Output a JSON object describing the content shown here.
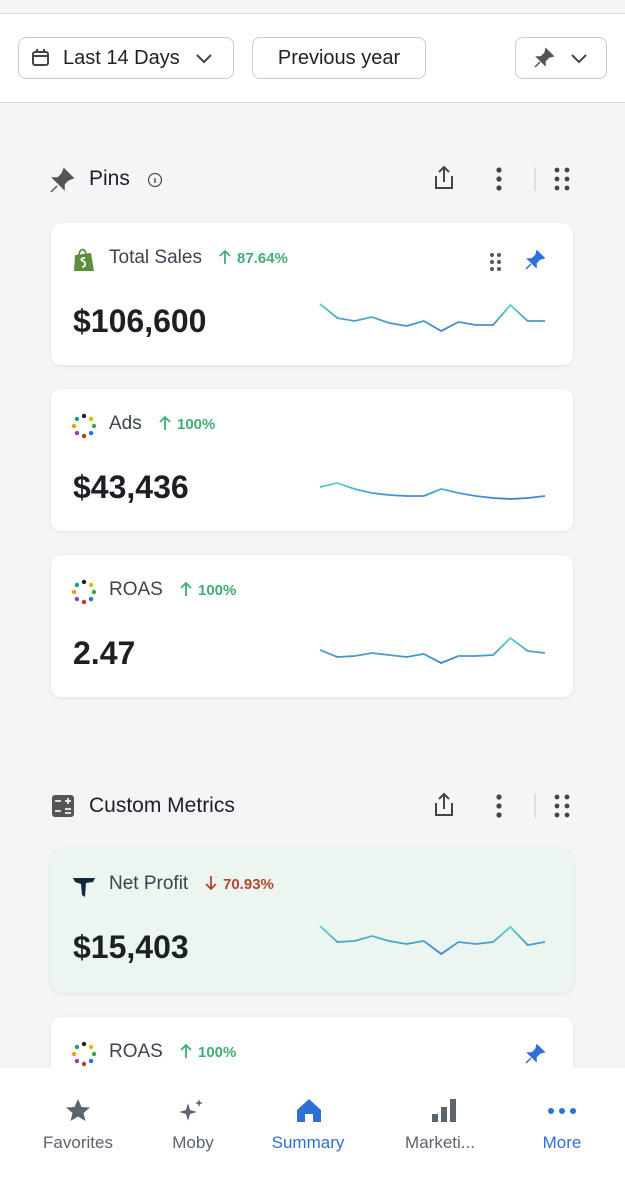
{
  "toolbar": {
    "date_range": "Last 14 Days",
    "compare": "Previous year"
  },
  "sections": [
    {
      "title": "Pins",
      "cards": [
        {
          "title": "Total Sales",
          "change": "87.64%",
          "value": "$106,600",
          "trend": [
            36,
            22,
            19,
            23,
            17,
            14,
            19,
            9,
            18,
            15,
            15,
            35,
            19,
            19
          ]
        },
        {
          "title": "Ads",
          "change": "100%",
          "value": "$43,436",
          "trend": [
            19,
            23,
            17,
            13,
            11,
            10,
            10,
            17,
            13,
            10,
            8,
            7,
            8,
            10
          ]
        },
        {
          "title": "ROAS",
          "change": "100%",
          "value": "2.47",
          "trend": [
            22,
            15,
            16,
            19,
            17,
            15,
            18,
            9,
            16,
            16,
            17,
            34,
            21,
            19
          ]
        }
      ]
    },
    {
      "title": "Custom Metrics",
      "cards": [
        {
          "title": "Net Profit",
          "change": "70.93%",
          "value": "$15,403",
          "trend": [
            40,
            24,
            25,
            30,
            25,
            22,
            25,
            12,
            24,
            22,
            24,
            39,
            21,
            24
          ]
        },
        {
          "title": "ROAS",
          "change": "100%"
        }
      ]
    }
  ],
  "nav": [
    "Favorites",
    "Moby",
    "Summary",
    "Marketi...",
    "More"
  ]
}
